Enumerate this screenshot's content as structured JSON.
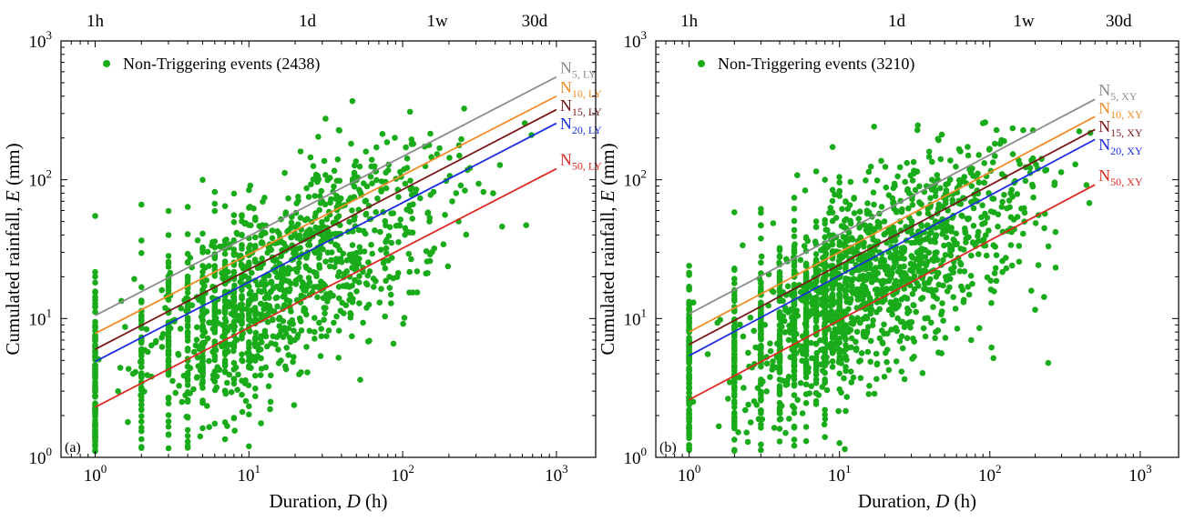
{
  "chart_data": [
    {
      "type": "scatter",
      "panel_tag": "(a)",
      "xscale": "log",
      "yscale": "log",
      "xlim": [
        0.6,
        1800
      ],
      "ylim": [
        1,
        1000
      ],
      "xlabel": "Duration, ",
      "xlabel_var": "D",
      "xlabel_unit": " (h)",
      "ylabel": "Cumulated rainfall, ",
      "ylabel_var": "E",
      "ylabel_unit": " (mm)",
      "x_ticks": [
        {
          "value": 1,
          "base": "10",
          "exp": "0"
        },
        {
          "value": 10,
          "base": "10",
          "exp": "1"
        },
        {
          "value": 100,
          "base": "10",
          "exp": "2"
        },
        {
          "value": 1000,
          "base": "10",
          "exp": "3"
        }
      ],
      "y_ticks": [
        {
          "value": 1,
          "base": "10",
          "exp": "0"
        },
        {
          "value": 10,
          "base": "10",
          "exp": "1"
        },
        {
          "value": 100,
          "base": "10",
          "exp": "2"
        },
        {
          "value": 1000,
          "base": "10",
          "exp": "3"
        }
      ],
      "top_ticks": [
        {
          "value": 1,
          "label": "1h"
        },
        {
          "value": 24,
          "label": "1d"
        },
        {
          "value": 168,
          "label": "1w"
        },
        {
          "value": 720,
          "label": "30d"
        }
      ],
      "legend": {
        "label": "Non-Triggering events (2438)",
        "color": "#1aab1a",
        "placement": "top-left"
      },
      "threshold_lines": [
        {
          "name": "N",
          "sub": "5, LY",
          "color": "#8c8c8c",
          "x": [
            1,
            1000
          ],
          "y": [
            10.5,
            550
          ]
        },
        {
          "name": "N",
          "sub": "10, LY",
          "color": "#f28c28",
          "x": [
            1,
            1000
          ],
          "y": [
            7.8,
            400
          ]
        },
        {
          "name": "N",
          "sub": "15, LY",
          "color": "#7a1818",
          "x": [
            1,
            1000
          ],
          "y": [
            6.0,
            320
          ]
        },
        {
          "name": "N",
          "sub": "20, LY",
          "color": "#1c2ee0",
          "x": [
            1,
            1000
          ],
          "y": [
            4.9,
            255
          ]
        },
        {
          "name": "N",
          "sub": "50, LY",
          "color": "#dc2a22",
          "x": [
            1,
            1000
          ],
          "y": [
            2.3,
            120
          ]
        }
      ],
      "point_cloud": {
        "count": 2438,
        "color": "#1aab1a",
        "x_range": [
          1,
          1000
        ],
        "y_range": [
          1.1,
          380
        ],
        "note": "estimated"
      }
    },
    {
      "type": "scatter",
      "panel_tag": "(b)",
      "xscale": "log",
      "yscale": "log",
      "xlim": [
        0.6,
        1800
      ],
      "ylim": [
        1,
        1000
      ],
      "xlabel": "Duration, ",
      "xlabel_var": "D",
      "xlabel_unit": " (h)",
      "ylabel": "Cumulated rainfall, ",
      "ylabel_var": "E",
      "ylabel_unit": " (mm)",
      "x_ticks": [
        {
          "value": 1,
          "base": "10",
          "exp": "0"
        },
        {
          "value": 10,
          "base": "10",
          "exp": "1"
        },
        {
          "value": 100,
          "base": "10",
          "exp": "2"
        },
        {
          "value": 1000,
          "base": "10",
          "exp": "3"
        }
      ],
      "y_ticks": [
        {
          "value": 1,
          "base": "10",
          "exp": "0"
        },
        {
          "value": 10,
          "base": "10",
          "exp": "1"
        },
        {
          "value": 100,
          "base": "10",
          "exp": "2"
        },
        {
          "value": 1000,
          "base": "10",
          "exp": "3"
        }
      ],
      "top_ticks": [
        {
          "value": 1,
          "label": "1h"
        },
        {
          "value": 24,
          "label": "1d"
        },
        {
          "value": 168,
          "label": "1w"
        },
        {
          "value": 720,
          "label": "30d"
        }
      ],
      "legend": {
        "label": "Non-Triggering events (3210)",
        "color": "#1aab1a",
        "placement": "top-left"
      },
      "threshold_lines": [
        {
          "name": "N",
          "sub": "5, XY",
          "color": "#8c8c8c",
          "x": [
            1,
            500
          ],
          "y": [
            10.8,
            380
          ]
        },
        {
          "name": "N",
          "sub": "10, XY",
          "color": "#f28c28",
          "x": [
            1,
            500
          ],
          "y": [
            8.0,
            285
          ]
        },
        {
          "name": "N",
          "sub": "15, XY",
          "color": "#7a1818",
          "x": [
            1,
            500
          ],
          "y": [
            6.5,
            230
          ]
        },
        {
          "name": "N",
          "sub": "20, XY",
          "color": "#1c2ee0",
          "x": [
            1,
            500
          ],
          "y": [
            5.4,
            195
          ]
        },
        {
          "name": "N",
          "sub": "50, XY",
          "color": "#dc2a22",
          "x": [
            1,
            500
          ],
          "y": [
            2.6,
            92
          ]
        }
      ],
      "point_cloud": {
        "count": 3210,
        "color": "#1aab1a",
        "x_range": [
          1,
          500
        ],
        "y_range": [
          1.1,
          290
        ],
        "note": "estimated"
      }
    }
  ]
}
